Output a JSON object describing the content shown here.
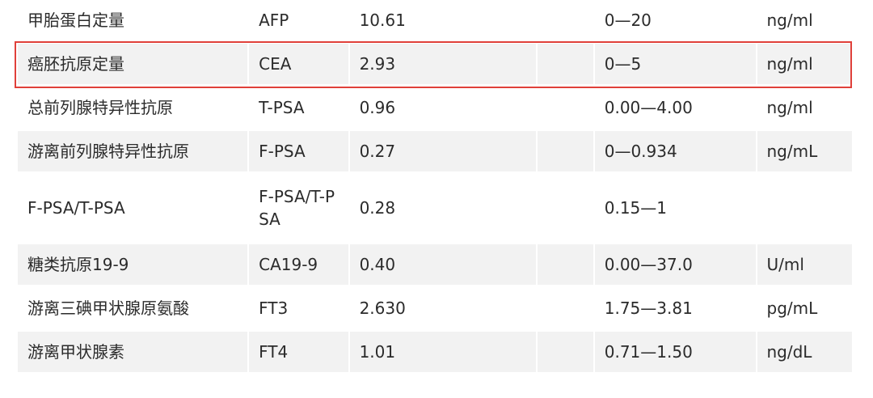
{
  "rows": [
    {
      "name": "甲胎蛋白定量",
      "code": "AFP",
      "value": "10.61",
      "flag": "",
      "range": "0—20",
      "unit": "ng/ml",
      "shaded": false
    },
    {
      "name": "癌胚抗原定量",
      "code": "CEA",
      "value": "2.93",
      "flag": "",
      "range": "0—5",
      "unit": "ng/ml",
      "shaded": true,
      "highlighted": true
    },
    {
      "name": "总前列腺特异性抗原",
      "code": "T-PSA",
      "value": "0.96",
      "flag": "",
      "range": "0.00—4.00",
      "unit": "ng/ml",
      "shaded": false
    },
    {
      "name": "游离前列腺特异性抗原",
      "code": "F-PSA",
      "value": "0.27",
      "flag": "",
      "range": "0—0.934",
      "unit": "ng/mL",
      "shaded": true
    },
    {
      "name": "F-PSA/T-PSA",
      "code": "F-PSA/T-PSA",
      "value": "0.28",
      "flag": "",
      "range": "0.15—1",
      "unit": "",
      "shaded": false
    },
    {
      "name": "糖类抗原19-9",
      "code": "CA19-9",
      "value": "0.40",
      "flag": "",
      "range": "0.00—37.0",
      "unit": "U/ml",
      "shaded": true
    },
    {
      "name": "游离三碘甲状腺原氨酸",
      "code": "FT3",
      "value": "2.630",
      "flag": "",
      "range": "1.75—3.81",
      "unit": "pg/mL",
      "shaded": false
    },
    {
      "name": "游离甲状腺素",
      "code": "FT4",
      "value": "1.01",
      "flag": "",
      "range": "0.71—1.50",
      "unit": "ng/dL",
      "shaded": true
    }
  ],
  "colors": {
    "row_shade": "#f2f2f2",
    "highlight_border": "#e0403a",
    "text": "#2b2b2b"
  }
}
